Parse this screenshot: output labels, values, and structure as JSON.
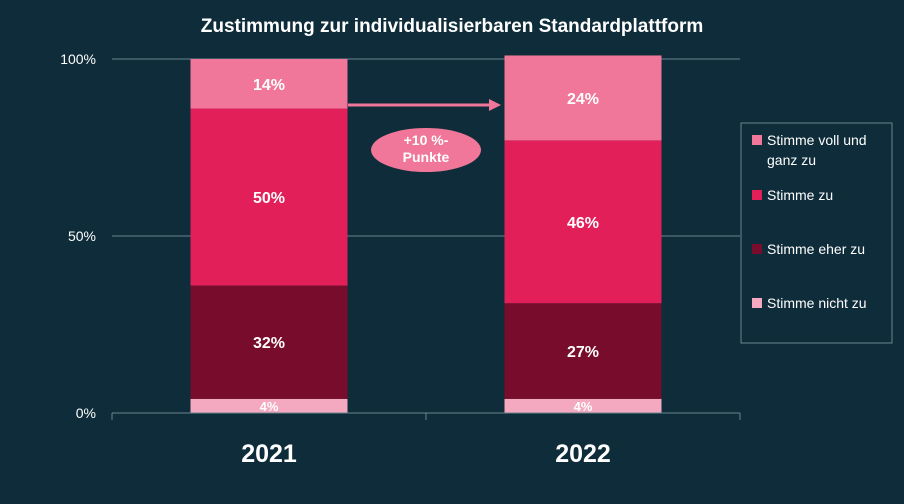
{
  "chart_data": {
    "type": "bar",
    "stacked": true,
    "title": "Zustimmung zur individualisierbaren Standardplattform",
    "categories": [
      "2021",
      "2022"
    ],
    "ylim": [
      0,
      100
    ],
    "yticks": [
      "0%",
      "50%",
      "100%"
    ],
    "series": [
      {
        "name": "Stimme nicht zu",
        "values": [
          4,
          4
        ],
        "labels": [
          "4%",
          "4%"
        ],
        "color": "#f4a9c0"
      },
      {
        "name": "Stimme eher zu",
        "values": [
          32,
          27
        ],
        "labels": [
          "32%",
          "27%"
        ],
        "color": "#780c2c"
      },
      {
        "name": "Stimme zu",
        "values": [
          50,
          46
        ],
        "labels": [
          "50%",
          "46%"
        ],
        "color": "#e31f59"
      },
      {
        "name": "Stimme voll und ganz zu",
        "values": [
          14,
          24
        ],
        "labels": [
          "14%",
          "24%"
        ],
        "color": "#f07799"
      }
    ],
    "legend": {
      "placement": "right",
      "items": [
        {
          "name": "Stimme voll und ganz zu",
          "lines": [
            "Stimme voll und",
            "ganz zu"
          ],
          "color": "#f07799"
        },
        {
          "name": "Stimme zu",
          "lines": [
            "Stimme zu"
          ],
          "color": "#e31f59"
        },
        {
          "name": "Stimme eher zu",
          "lines": [
            "Stimme eher zu"
          ],
          "color": "#780c2c"
        },
        {
          "name": "Stimme nicht zu",
          "lines": [
            "Stimme nicht zu"
          ],
          "color": "#f4a9c0"
        }
      ]
    },
    "annotation": {
      "lines": [
        "+10 %-",
        "Punkte"
      ],
      "color": "#f07799"
    },
    "colors": {
      "background": "#0e2c39",
      "grid": "#6b8590",
      "text": "#ffffff"
    }
  }
}
